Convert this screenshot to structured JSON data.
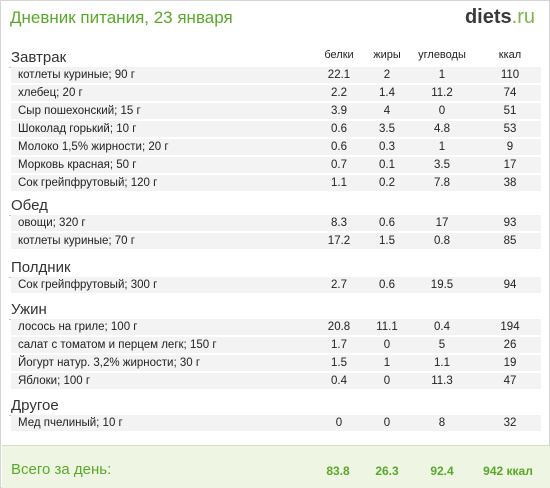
{
  "header": {
    "title": "Дневник питания, 23 января",
    "logo_main": "diets",
    "logo_tld": ".ru"
  },
  "columns": {
    "protein": "белки",
    "fat": "жиры",
    "carbs": "углеводы",
    "kcal": "ккал"
  },
  "meals": [
    {
      "title": "Завтрак",
      "items": [
        {
          "name": "котлеты куриные; 90 г",
          "protein": "22.1",
          "fat": "2",
          "carbs": "1",
          "kcal": "110"
        },
        {
          "name": "хлебец; 20 г",
          "protein": "2.2",
          "fat": "1.4",
          "carbs": "11.2",
          "kcal": "74"
        },
        {
          "name": "Сыр пошехонский; 15 г",
          "protein": "3.9",
          "fat": "4",
          "carbs": "0",
          "kcal": "51"
        },
        {
          "name": "Шоколад горький; 10 г",
          "protein": "0.6",
          "fat": "3.5",
          "carbs": "4.8",
          "kcal": "53"
        },
        {
          "name": "Молоко 1,5% жирности; 20 г",
          "protein": "0.6",
          "fat": "0.3",
          "carbs": "1",
          "kcal": "9"
        },
        {
          "name": "Морковь красная; 50 г",
          "protein": "0.7",
          "fat": "0.1",
          "carbs": "3.5",
          "kcal": "17"
        },
        {
          "name": "Сок грейпфрутовый; 120 г",
          "protein": "1.1",
          "fat": "0.2",
          "carbs": "7.8",
          "kcal": "38"
        }
      ]
    },
    {
      "title": "Обед",
      "items": [
        {
          "name": "овощи; 320 г",
          "protein": "8.3",
          "fat": "0.6",
          "carbs": "17",
          "kcal": "93"
        },
        {
          "name": "котлеты куриные; 70 г",
          "protein": "17.2",
          "fat": "1.5",
          "carbs": "0.8",
          "kcal": "85"
        }
      ]
    },
    {
      "title": "Полдник",
      "items": [
        {
          "name": "Сок грейпфрутовый; 300 г",
          "protein": "2.7",
          "fat": "0.6",
          "carbs": "19.5",
          "kcal": "94"
        }
      ]
    },
    {
      "title": "Ужин",
      "items": [
        {
          "name": "лосось на гриле; 100 г",
          "protein": "20.8",
          "fat": "11.1",
          "carbs": "0.4",
          "kcal": "194"
        },
        {
          "name": "салат с томатом и перцем легк; 150 г",
          "protein": "1.7",
          "fat": "0",
          "carbs": "5",
          "kcal": "26"
        },
        {
          "name": "Йогурт натур. 3,2% жирности; 30 г",
          "protein": "1.5",
          "fat": "1",
          "carbs": "1.1",
          "kcal": "19"
        },
        {
          "name": "Яблоки; 100 г",
          "protein": "0.4",
          "fat": "0",
          "carbs": "11.3",
          "kcal": "47"
        }
      ]
    },
    {
      "title": "Другое",
      "items": [
        {
          "name": "Мед пчелиный; 10 г",
          "protein": "0",
          "fat": "0",
          "carbs": "8",
          "kcal": "32"
        }
      ]
    }
  ],
  "footer": {
    "label": "Всего за день:",
    "protein": "83.8",
    "fat": "26.3",
    "carbs": "92.4",
    "kcal": "942 ккал"
  }
}
